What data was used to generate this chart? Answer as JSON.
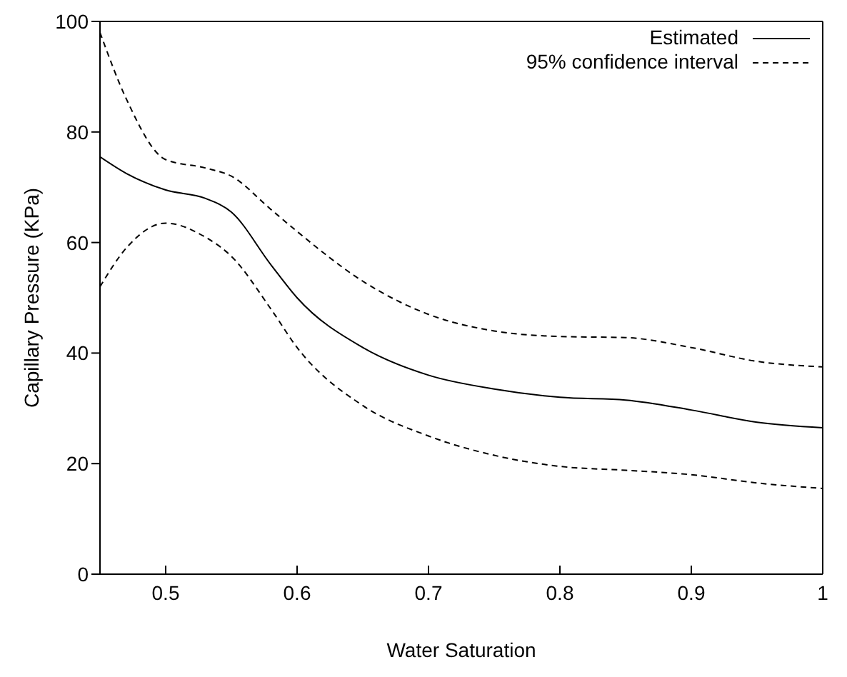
{
  "chart_data": {
    "type": "line",
    "xlabel": "Water Saturation",
    "ylabel": "Capillary Pressure (KPa)",
    "x": [
      0.45,
      0.47,
      0.5,
      0.53,
      0.55,
      0.58,
      0.6,
      0.65,
      0.7,
      0.75,
      0.8,
      0.85,
      0.9,
      0.95,
      1
    ],
    "series": [
      {
        "name": "Estimated",
        "color": "#000000",
        "line_style": "solid",
        "values": [
          75.5,
          72.5,
          69.5,
          68,
          65.5,
          56,
          50,
          41,
          36,
          33.5,
          32,
          31.5,
          29.7,
          27.5,
          26.5
        ]
      },
      {
        "name": "95% confidence interval",
        "color": "#000000",
        "line_style": "dashed",
        "values": [
          98,
          86,
          75,
          73.5,
          72,
          66,
          62,
          53,
          47,
          44,
          43,
          42.8,
          41,
          38.5,
          37.5
        ]
      },
      {
        "color": "#000000",
        "line_style": "dashed",
        "values": [
          52,
          59,
          63.5,
          61,
          57.5,
          48,
          41,
          30.5,
          25,
          21.5,
          19.5,
          18.8,
          18,
          16.5,
          15.5
        ]
      }
    ],
    "xlim": [
      0.45,
      1
    ],
    "xticks": [
      0.5,
      0.6,
      0.7,
      0.8,
      0.9,
      1
    ],
    "ylim": [
      0,
      100
    ],
    "yticks": [
      0,
      20,
      40,
      60,
      80,
      100
    ],
    "legend": "top right",
    "marker": "none"
  }
}
